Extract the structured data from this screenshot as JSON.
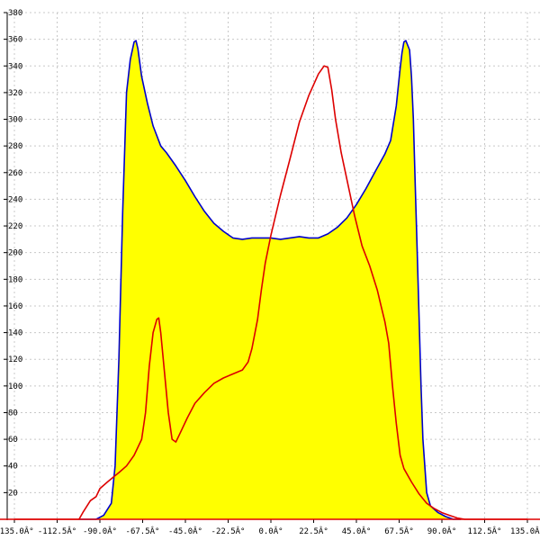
{
  "chart_data": {
    "type": "area",
    "title": "",
    "xlabel": "",
    "ylabel": "",
    "xlim": [
      -135,
      135
    ],
    "ylim": [
      0,
      380
    ],
    "grid": true,
    "x_ticks": [
      -135,
      -112.5,
      -90,
      -67.5,
      -45,
      -22.5,
      0,
      22.5,
      45,
      67.5,
      90,
      112.5,
      135
    ],
    "x_tick_labels": [
      "-135.0Â°",
      "-112.5Â°",
      "-90.0Â°",
      "-67.5Â°",
      "-45.0Â°",
      "-22.5Â°",
      "0.0Â°",
      "22.5Â°",
      "45.0Â°",
      "67.5Â°",
      "90.0Â°",
      "112.5Â°",
      "135.0Â°"
    ],
    "y_ticks": [
      0,
      20,
      40,
      60,
      80,
      100,
      120,
      140,
      160,
      180,
      200,
      220,
      240,
      260,
      280,
      300,
      320,
      340,
      360,
      380
    ],
    "y_tick_labels": [
      "0",
      "20",
      "40",
      "60",
      "80",
      "100",
      "120",
      "140",
      "160",
      "180",
      "200",
      "220",
      "240",
      "260",
      "280",
      "300",
      "320",
      "340",
      "360",
      "380"
    ],
    "series": [
      {
        "color": "#0000cc",
        "fill": "#ffff00",
        "points": [
          [
            -101,
            0
          ],
          [
            -92,
            0
          ],
          [
            -88,
            3
          ],
          [
            -84,
            12
          ],
          [
            -82,
            40
          ],
          [
            -80,
            120
          ],
          [
            -78,
            230
          ],
          [
            -76,
            320
          ],
          [
            -74,
            345
          ],
          [
            -72,
            358
          ],
          [
            -71,
            359
          ],
          [
            -70,
            353
          ],
          [
            -68,
            332
          ],
          [
            -65,
            312
          ],
          [
            -62,
            295
          ],
          [
            -58,
            280
          ],
          [
            -55,
            275
          ],
          [
            -50,
            265
          ],
          [
            -45,
            254
          ],
          [
            -40,
            242
          ],
          [
            -35,
            231
          ],
          [
            -30,
            222
          ],
          [
            -25,
            216
          ],
          [
            -20,
            211
          ],
          [
            -15,
            210
          ],
          [
            -10,
            211
          ],
          [
            -5,
            211
          ],
          [
            0,
            211
          ],
          [
            5,
            210
          ],
          [
            10,
            211
          ],
          [
            15,
            212
          ],
          [
            20,
            211
          ],
          [
            25,
            211
          ],
          [
            30,
            214
          ],
          [
            35,
            219
          ],
          [
            40,
            226
          ],
          [
            45,
            236
          ],
          [
            50,
            248
          ],
          [
            55,
            261
          ],
          [
            60,
            274
          ],
          [
            63,
            284
          ],
          [
            66,
            310
          ],
          [
            68,
            338
          ],
          [
            69,
            350
          ],
          [
            70,
            358
          ],
          [
            71,
            359
          ],
          [
            73,
            352
          ],
          [
            74,
            332
          ],
          [
            75,
            300
          ],
          [
            76,
            250
          ],
          [
            77,
            200
          ],
          [
            78,
            150
          ],
          [
            79,
            100
          ],
          [
            80,
            60
          ],
          [
            82,
            20
          ],
          [
            84,
            10
          ],
          [
            88,
            5
          ],
          [
            92,
            2
          ],
          [
            96,
            0
          ],
          [
            100,
            0
          ]
        ]
      },
      {
        "color": "#dd0000",
        "points": [
          [
            -135,
            0
          ],
          [
            -101,
            0
          ],
          [
            -99,
            5
          ],
          [
            -95,
            14
          ],
          [
            -92,
            17
          ],
          [
            -90,
            23
          ],
          [
            -86,
            28
          ],
          [
            -80,
            35
          ],
          [
            -76,
            40
          ],
          [
            -72,
            48
          ],
          [
            -68,
            60
          ],
          [
            -66,
            80
          ],
          [
            -64,
            115
          ],
          [
            -62,
            140
          ],
          [
            -60,
            150
          ],
          [
            -59,
            151
          ],
          [
            -58,
            140
          ],
          [
            -56,
            110
          ],
          [
            -54,
            80
          ],
          [
            -52,
            60
          ],
          [
            -50,
            58
          ],
          [
            -48,
            64
          ],
          [
            -44,
            76
          ],
          [
            -40,
            87
          ],
          [
            -35,
            95
          ],
          [
            -30,
            102
          ],
          [
            -25,
            106
          ],
          [
            -20,
            109
          ],
          [
            -15,
            112
          ],
          [
            -12,
            118
          ],
          [
            -10,
            128
          ],
          [
            -7,
            150
          ],
          [
            -5,
            172
          ],
          [
            -3,
            192
          ],
          [
            0,
            213
          ],
          [
            5,
            243
          ],
          [
            10,
            270
          ],
          [
            15,
            298
          ],
          [
            20,
            318
          ],
          [
            25,
            334
          ],
          [
            28,
            340
          ],
          [
            30,
            339
          ],
          [
            32,
            322
          ],
          [
            34,
            300
          ],
          [
            37,
            275
          ],
          [
            40,
            255
          ],
          [
            44,
            228
          ],
          [
            48,
            205
          ],
          [
            52,
            190
          ],
          [
            56,
            172
          ],
          [
            58,
            160
          ],
          [
            60,
            148
          ],
          [
            62,
            132
          ],
          [
            64,
            100
          ],
          [
            66,
            72
          ],
          [
            68,
            48
          ],
          [
            70,
            38
          ],
          [
            74,
            28
          ],
          [
            78,
            19
          ],
          [
            82,
            12
          ],
          [
            86,
            8
          ],
          [
            90,
            5
          ],
          [
            94,
            3
          ],
          [
            98,
            1
          ],
          [
            102,
            0
          ],
          [
            135,
            0
          ]
        ]
      }
    ]
  }
}
